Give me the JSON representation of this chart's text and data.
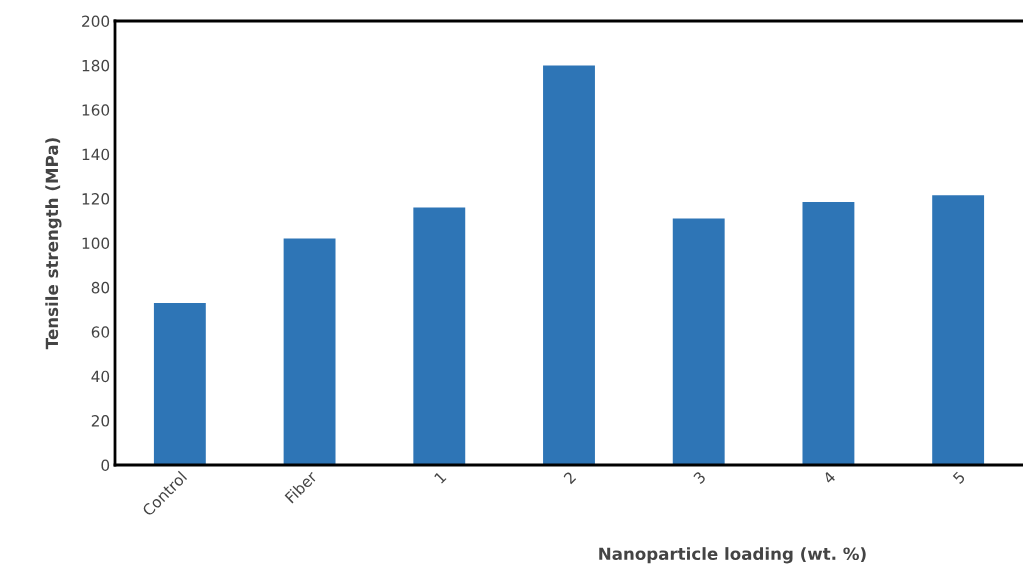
{
  "chart_data": {
    "type": "bar",
    "xlabel": "Nanoparticle loading (wt. %)",
    "ylabel": "Tensile strength (MPa)",
    "categories": [
      "Control",
      "Fiber",
      "1",
      "2",
      "3",
      "4",
      "5"
    ],
    "values": [
      73,
      102,
      116,
      180,
      111,
      118.5,
      121.5
    ],
    "color": "#2e75b6",
    "ylim": [
      0,
      200
    ],
    "yticks": [
      0,
      20,
      40,
      60,
      80,
      100,
      120,
      140,
      160,
      180,
      200
    ],
    "grid": false
  }
}
